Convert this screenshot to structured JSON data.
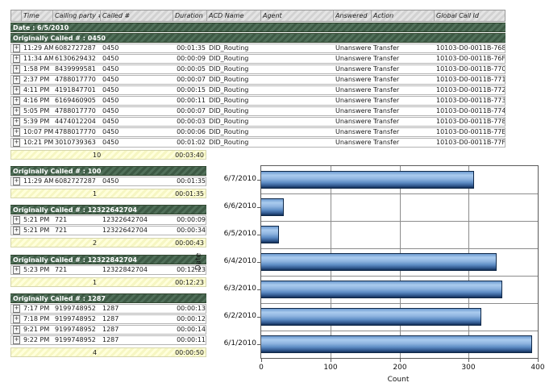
{
  "colors": {
    "band_green": "#3d5944",
    "subtotal_yellow": "#f6f6c2",
    "bar_blue": "#5d8cc4",
    "grid_gray": "#8c8c8c"
  },
  "icons": {
    "expand": "+"
  },
  "table": {
    "columns": [
      "",
      "Time",
      "Calling party #",
      "Called #",
      "Duration",
      "ACD Name",
      "Agent",
      "Answered",
      "Action",
      "Global Call Id"
    ],
    "date_label": "Date : 6/5/2010",
    "group_label": "Originally Called # : 0450",
    "rows": [
      {
        "time": "11:29 AM",
        "calling": "6082727287",
        "called": "0450",
        "duration": "00:01:35",
        "acd": "DID_Routing",
        "agent": "",
        "answered": "Unanswered",
        "action": "Transfer",
        "global_id": "10103-D0-0011B-768"
      },
      {
        "time": "11:34 AM",
        "calling": "6130629432",
        "called": "0450",
        "duration": "00:00:09",
        "acd": "DID_Routing",
        "agent": "",
        "answered": "Unanswered",
        "action": "Transfer",
        "global_id": "10103-D0-0011B-76F"
      },
      {
        "time": "1:58 PM",
        "calling": "8439999581",
        "called": "0450",
        "duration": "00:00:05",
        "acd": "DID_Routing",
        "agent": "",
        "answered": "Unanswered",
        "action": "Transfer",
        "global_id": "10103-D0-0011B-770"
      },
      {
        "time": "2:37 PM",
        "calling": "4788017770",
        "called": "0450",
        "duration": "00:00:07",
        "acd": "DID_Routing",
        "agent": "",
        "answered": "Unanswered",
        "action": "Transfer",
        "global_id": "10103-D0-0011B-771"
      },
      {
        "time": "4:11 PM",
        "calling": "4191847701",
        "called": "0450",
        "duration": "00:00:15",
        "acd": "DID_Routing",
        "agent": "",
        "answered": "Unanswered",
        "action": "Transfer",
        "global_id": "10103-D0-0011B-772"
      },
      {
        "time": "4:16 PM",
        "calling": "6169460905",
        "called": "0450",
        "duration": "00:00:11",
        "acd": "DID_Routing",
        "agent": "",
        "answered": "Unanswered",
        "action": "Transfer",
        "global_id": "10103-D0-0011B-773"
      },
      {
        "time": "5:05 PM",
        "calling": "4788017770",
        "called": "0450",
        "duration": "00:00:07",
        "acd": "DID_Routing",
        "agent": "",
        "answered": "Unanswered",
        "action": "Transfer",
        "global_id": "10103-D0-0011B-774"
      },
      {
        "time": "5:39 PM",
        "calling": "4474012204",
        "called": "0450",
        "duration": "00:00:03",
        "acd": "DID_Routing",
        "agent": "",
        "answered": "Unanswered",
        "action": "Transfer",
        "global_id": "10103-D0-0011B-778"
      },
      {
        "time": "10:07 PM",
        "calling": "4788017770",
        "called": "0450",
        "duration": "00:00:06",
        "acd": "DID_Routing",
        "agent": "",
        "answered": "Unanswered",
        "action": "Transfer",
        "global_id": "10103-D0-0011B-77E"
      },
      {
        "time": "10:21 PM",
        "calling": "3010739363",
        "called": "0450",
        "duration": "00:01:02",
        "acd": "DID_Routing",
        "agent": "",
        "answered": "Unanswered",
        "action": "Transfer",
        "global_id": "10103-D0-0011B-77F"
      }
    ],
    "subtotal": {
      "count": "10",
      "duration": "00:03:40"
    }
  },
  "groups": [
    {
      "label": "Originally Called # : 100",
      "rows": [
        {
          "time": "11:29 AM",
          "calling": "6082727287",
          "called": "0450",
          "duration": "00:01:35"
        }
      ],
      "subtotal": {
        "count": "1",
        "duration": "00:01:35"
      }
    },
    {
      "label": "Originally Called # : 12322642704",
      "rows": [
        {
          "time": "5:21 PM",
          "calling": "721",
          "called": "12322642704",
          "duration": "00:00:09"
        },
        {
          "time": "5:21 PM",
          "calling": "721",
          "called": "12322642704",
          "duration": "00:00:34"
        }
      ],
      "subtotal": {
        "count": "2",
        "duration": "00:00:43"
      }
    },
    {
      "label": "Originally Called # : 12322842704",
      "rows": [
        {
          "time": "5:23 PM",
          "calling": "721",
          "called": "12322842704",
          "duration": "00:12:23"
        }
      ],
      "subtotal": {
        "count": "1",
        "duration": "00:12:23"
      }
    },
    {
      "label": "Originally Called # : 1287",
      "rows": [
        {
          "time": "7:17 PM",
          "calling": "9199748952",
          "called": "1287",
          "duration": "00:00:13"
        },
        {
          "time": "7:18 PM",
          "calling": "9199748952",
          "called": "1287",
          "duration": "00:00:12"
        },
        {
          "time": "9:21 PM",
          "calling": "9199748952",
          "called": "1287",
          "duration": "00:00:14"
        },
        {
          "time": "9:22 PM",
          "calling": "9199748952",
          "called": "1287",
          "duration": "00:00:11"
        }
      ],
      "subtotal": {
        "count": "4",
        "duration": "00:00:50"
      }
    }
  ],
  "chart_data": {
    "type": "bar",
    "orientation": "horizontal",
    "title": "",
    "xlabel": "Count",
    "ylabel": "Date",
    "categories": [
      "6/7/2010",
      "6/6/2010",
      "6/5/2010",
      "6/4/2010",
      "6/3/2010",
      "6/2/2010",
      "6/1/2010"
    ],
    "values": [
      308,
      33,
      26,
      341,
      349,
      318,
      392
    ],
    "xlim": [
      0,
      400
    ],
    "xticks": [
      "0",
      "100",
      "200",
      "300",
      "400"
    ],
    "grid": true,
    "legend": false,
    "bar_color": "#5d8cc4"
  }
}
